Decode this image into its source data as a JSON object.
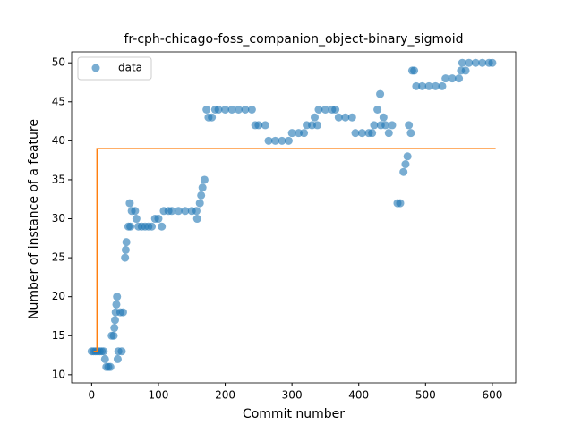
{
  "chart_data": {
    "type": "scatter",
    "title": "fr-cph-chicago-foss_companion_object-binary_sigmoid",
    "x_label": "Commit number",
    "y_label": "Number of instance of a feature",
    "xlim": [
      -30,
      635
    ],
    "ylim": [
      8.95,
      51.4
    ],
    "xticks": [
      0,
      100,
      200,
      300,
      400,
      500,
      600
    ],
    "yticks": [
      10,
      15,
      20,
      25,
      30,
      35,
      40,
      45,
      50
    ],
    "legend": "upper left",
    "series": [
      {
        "name": "data",
        "color": "#1f77b4",
        "x": [
          0,
          3,
          6,
          9,
          12,
          15,
          18,
          20,
          22,
          25,
          28,
          30,
          33,
          34,
          35,
          36,
          37,
          38,
          39,
          40,
          45,
          43,
          47,
          50,
          51,
          52,
          55,
          58,
          57,
          60,
          65,
          67,
          70,
          75,
          80,
          85,
          90,
          95,
          100,
          105,
          108,
          115,
          120,
          130,
          140,
          150,
          157,
          158,
          162,
          164,
          166,
          169,
          172,
          175,
          180,
          185,
          190,
          200,
          210,
          220,
          230,
          240,
          245,
          250,
          260,
          265,
          275,
          285,
          295,
          300,
          310,
          318,
          322,
          330,
          334,
          338,
          340,
          350,
          360,
          365,
          370,
          380,
          390,
          395,
          405,
          415,
          420,
          423,
          428,
          432,
          433,
          437,
          440,
          445,
          450,
          458,
          462,
          467,
          470,
          473,
          475,
          478,
          480,
          483,
          486,
          495,
          505,
          515,
          525,
          530,
          540,
          550,
          553,
          555,
          560,
          565,
          575,
          585,
          595,
          600
        ],
        "values": [
          13,
          13,
          13,
          13,
          13,
          13,
          13,
          12,
          11,
          11,
          11,
          15,
          15,
          16,
          17,
          18,
          19,
          20,
          12,
          13,
          13,
          18,
          18,
          25,
          26,
          27,
          29,
          29,
          32,
          31,
          31,
          30,
          29,
          29,
          29,
          29,
          29,
          30,
          30,
          29,
          31,
          31,
          31,
          31,
          31,
          31,
          31,
          30,
          32,
          33,
          34,
          35,
          44,
          43,
          43,
          44,
          44,
          44,
          44,
          44,
          44,
          44,
          42,
          42,
          42,
          40,
          40,
          40,
          40,
          41,
          41,
          41,
          42,
          42,
          43,
          42,
          44,
          44,
          44,
          44,
          43,
          43,
          43,
          41,
          41,
          41,
          41,
          42,
          44,
          46,
          42,
          43,
          42,
          41,
          42,
          32,
          32,
          36,
          37,
          38,
          42,
          41,
          49,
          49,
          47,
          47,
          47,
          47,
          47,
          48,
          48,
          48,
          49,
          50,
          49,
          50,
          50,
          50,
          50,
          50
        ]
      }
    ],
    "line": {
      "color": "#ff7f0e",
      "x": [
        3,
        8,
        8,
        605
      ],
      "y": [
        13,
        13,
        39,
        39
      ]
    }
  }
}
